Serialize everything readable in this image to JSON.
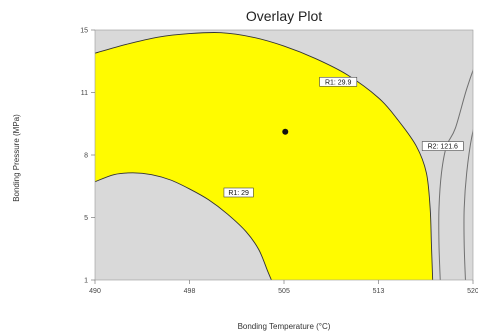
{
  "chart_data": {
    "type": "contour",
    "title": "Overlay Plot",
    "xlabel": "Bonding Temperature (°C)",
    "ylabel": "Bonding Pressure (MPa)",
    "xlim": [
      490,
      520
    ],
    "ylim": [
      1,
      15
    ],
    "xticks": [
      "490",
      "498",
      "505",
      "513",
      "520"
    ],
    "yticks": [
      "1",
      "5",
      "8",
      "11",
      "15"
    ],
    "colors": {
      "feasible": "#fffb00",
      "infeasible": "#d9d9d9",
      "boundary": "#707070",
      "outline": "#333333",
      "point": "#111111"
    },
    "regions": [
      {
        "name": "r1-outer-limit",
        "boundary": [
          [
            490,
            13.7
          ],
          [
            492.5,
            14.2
          ],
          [
            495,
            14.6
          ],
          [
            497.5,
            14.8
          ],
          [
            500,
            14.85
          ],
          [
            502.5,
            14.6
          ],
          [
            505,
            14.1
          ],
          [
            507.5,
            13.4
          ],
          [
            510,
            12.5
          ],
          [
            512.5,
            11.2
          ],
          [
            514,
            10.0
          ],
          [
            515.5,
            8.5
          ],
          [
            516.3,
            7.0
          ],
          [
            516.6,
            5.0
          ],
          [
            516.7,
            3.0
          ],
          [
            516.8,
            1.0
          ]
        ]
      },
      {
        "name": "r1-inner-limit",
        "boundary": [
          [
            490,
            6.5
          ],
          [
            491.5,
            6.9
          ],
          [
            493,
            7.0
          ],
          [
            494.5,
            6.9
          ],
          [
            496,
            6.6
          ],
          [
            497.5,
            6.1
          ],
          [
            499,
            5.5
          ],
          [
            500.5,
            4.7
          ],
          [
            502,
            3.7
          ],
          [
            503,
            2.7
          ],
          [
            503.7,
            1.5
          ],
          [
            504,
            1.0
          ]
        ]
      },
      {
        "name": "r2-limit-left",
        "boundary": [
          [
            521.3,
            15
          ],
          [
            520.4,
            13.5
          ],
          [
            519.5,
            11.7
          ],
          [
            518.6,
            9.5
          ],
          [
            517.9,
            8.5
          ],
          [
            517.5,
            7.0
          ],
          [
            517.3,
            5.0
          ],
          [
            517.3,
            3.0
          ],
          [
            517.4,
            1.0
          ]
        ]
      },
      {
        "name": "r2-limit-right",
        "boundary": [
          [
            522.4,
            15
          ],
          [
            521.5,
            13.0
          ],
          [
            520.6,
            11.0
          ],
          [
            519.9,
            9.0
          ],
          [
            519.5,
            7.0
          ],
          [
            519.3,
            5.0
          ],
          [
            519.3,
            3.0
          ],
          [
            519.4,
            1.0
          ]
        ]
      }
    ],
    "annotations": [
      {
        "text": "R1: 29.9",
        "x": 509.3,
        "y": 12.1
      },
      {
        "text": "R2: 121.6",
        "x": 517.6,
        "y": 8.5
      },
      {
        "text": "R1: 29",
        "x": 501.4,
        "y": 5.9
      }
    ],
    "points": [
      {
        "x": 505.1,
        "y": 9.3
      }
    ]
  }
}
